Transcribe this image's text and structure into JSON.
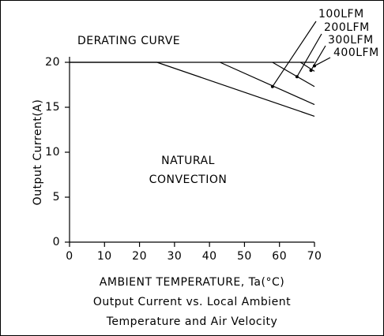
{
  "chart_data": {
    "type": "line",
    "title": "DERATING CURVE",
    "x_label": "AMBIENT TEMPERATURE, Ta(°C)",
    "y_label": "Output Current(A)",
    "caption": [
      "Output Current vs. Local Ambient",
      "Temperature and Air Velocity"
    ],
    "annotations": [
      "NATURAL",
      "CONVECTION"
    ],
    "series": [
      {
        "color": "#000000",
        "x": [
          0,
          25,
          70
        ],
        "values": [
          20,
          20,
          14
        ]
      },
      {
        "name": "100LFM",
        "color": "#000000",
        "x": [
          43,
          70
        ],
        "values": [
          20,
          15.3
        ],
        "marker": [
          58,
          17.3
        ]
      },
      {
        "name": "200LFM",
        "color": "#000000",
        "x": [
          58,
          70
        ],
        "values": [
          20,
          17.3
        ],
        "marker": [
          65,
          18.4
        ]
      },
      {
        "name": "300LFM",
        "color": "#000000",
        "x": [
          66,
          70
        ],
        "values": [
          20,
          19
        ],
        "marker": [
          69,
          19.1
        ]
      },
      {
        "name": "400LFM",
        "color": "#000000",
        "x": [
          70
        ],
        "values": [
          20
        ],
        "marker": [
          70,
          19.6
        ]
      }
    ],
    "xlim": [
      0,
      70
    ],
    "xticks": [
      0,
      10,
      20,
      30,
      40,
      50,
      60,
      70
    ],
    "ylim": [
      0,
      20
    ],
    "yticks": [
      0,
      5,
      10,
      15,
      20
    ]
  }
}
